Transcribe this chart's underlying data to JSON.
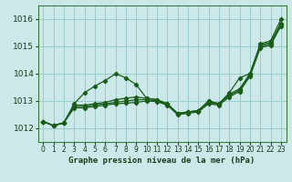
{
  "title": "Graphe pression niveau de la mer (hPa)",
  "bg_color": "#cce8e8",
  "grid_color": "#99cccc",
  "line_color": "#1a5c1a",
  "xlim": [
    -0.5,
    23.5
  ],
  "ylim": [
    1011.5,
    1016.5
  ],
  "yticks": [
    1012,
    1013,
    1014,
    1015,
    1016
  ],
  "xticks": [
    0,
    1,
    2,
    3,
    4,
    5,
    6,
    7,
    8,
    9,
    10,
    11,
    12,
    13,
    14,
    15,
    16,
    17,
    18,
    19,
    20,
    21,
    22,
    23
  ],
  "series": [
    [
      1012.25,
      1012.1,
      1012.2,
      1012.9,
      1013.3,
      1013.55,
      1013.75,
      1014.0,
      1013.85,
      1013.6,
      1013.1,
      1013.05,
      1012.9,
      1012.55,
      1012.6,
      1012.65,
      1013.0,
      1012.9,
      1013.3,
      1013.85,
      1014.0,
      1015.1,
      1015.2,
      1016.0
    ],
    [
      1012.25,
      1012.1,
      1012.2,
      1012.85,
      1012.85,
      1012.9,
      1012.95,
      1013.05,
      1013.1,
      1013.15,
      1013.1,
      1013.05,
      1012.9,
      1012.55,
      1012.6,
      1012.65,
      1013.0,
      1012.9,
      1013.25,
      1013.45,
      1014.0,
      1015.05,
      1015.15,
      1015.85
    ],
    [
      1012.25,
      1012.1,
      1012.2,
      1012.8,
      1012.8,
      1012.85,
      1012.9,
      1012.95,
      1013.0,
      1013.05,
      1013.05,
      1013.0,
      1012.88,
      1012.53,
      1012.58,
      1012.63,
      1012.95,
      1012.88,
      1013.2,
      1013.4,
      1013.95,
      1015.0,
      1015.1,
      1015.8
    ],
    [
      1012.25,
      1012.1,
      1012.2,
      1012.75,
      1012.75,
      1012.8,
      1012.85,
      1012.9,
      1012.92,
      1012.95,
      1013.0,
      1012.98,
      1012.85,
      1012.5,
      1012.55,
      1012.6,
      1012.9,
      1012.85,
      1013.15,
      1013.35,
      1013.9,
      1014.95,
      1015.05,
      1015.75
    ]
  ]
}
